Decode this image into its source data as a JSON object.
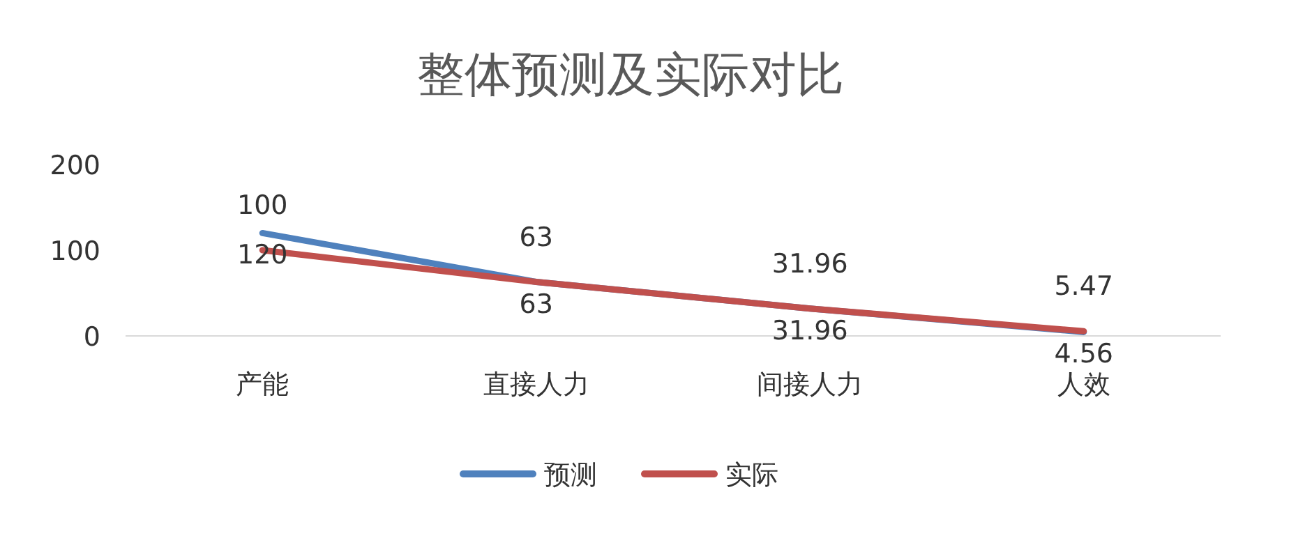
{
  "chart_data": {
    "type": "line",
    "title": "整体预测及实际对比",
    "categories": [
      "产能",
      "直接人力",
      "间接人力",
      "人效"
    ],
    "series": [
      {
        "name": "预测",
        "color": "#4f81bd",
        "values": [
          120,
          63,
          31.96,
          4.56
        ]
      },
      {
        "name": "实际",
        "color": "#c0504d",
        "values": [
          100,
          63,
          31.96,
          5.47
        ]
      }
    ],
    "ylim": [
      0,
      200
    ],
    "yticks": [
      0,
      100,
      200
    ],
    "grid": false,
    "legend": "bottom",
    "data_labels": true,
    "marker": "none",
    "line_style": "solid"
  }
}
